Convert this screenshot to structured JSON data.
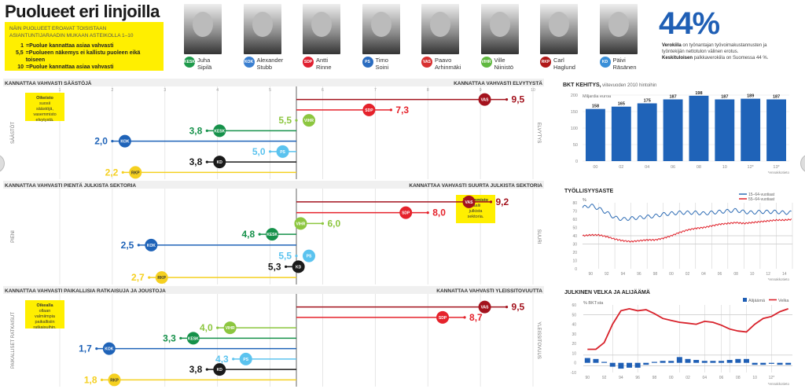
{
  "title": "Puolueet eri linjoilla",
  "legend": {
    "subtitle": "NÄIN PUOLUEET EROAVAT TOISISTAAN ASIANTUNTIJARAADIN MUKAAN ASTEIKOLLA 1–10",
    "rows": [
      {
        "key": "1",
        "text": "=Puolue kannattaa asiaa vahvasti"
      },
      {
        "key": "5,5",
        "text": "=Puolueen näkemys ei kallistu puoleen eikä toiseen"
      },
      {
        "key": "10",
        "text": "=Puolue kannattaa asiaa vahvasti"
      }
    ]
  },
  "leaders": [
    {
      "first": "Juha",
      "last": "Sipilä",
      "party": "KESK",
      "color": "#1e9a4b"
    },
    {
      "first": "Alexander",
      "last": "Stubb",
      "party": "KOK",
      "color": "#3a7fd0"
    },
    {
      "first": "Antti",
      "last": "Rinne",
      "party": "SDP",
      "color": "#e02030"
    },
    {
      "first": "Timo",
      "last": "Soini",
      "party": "PS",
      "color": "#2a6cc0"
    },
    {
      "first": "Paavo",
      "last": "Arhinmäki",
      "party": "VAS",
      "color": "#d83030"
    },
    {
      "first": "Ville",
      "last": "Niinistö",
      "party": "VIHR",
      "color": "#60b840"
    },
    {
      "first": "Carl",
      "last": "Haglund",
      "party": "RKP",
      "color": "#b01818"
    },
    {
      "first": "Päivi",
      "last": "Räsänen",
      "party": "KD",
      "color": "#3a8fd8"
    }
  ],
  "stat": {
    "value": "44%",
    "text1_bold": "Verokiila",
    "text1": " on työnantajan työvoimakustannusten ja työntekijän nettotulon välinen erotus.",
    "text2_bold": "Keskituloisen",
    "text2": " palkkaverokiila on Suomessa 44 %."
  },
  "colors": {
    "VAS": "#a3121d",
    "SDP": "#e5222b",
    "VIHR": "#8cc63f",
    "KESK": "#15914a",
    "KOK": "#1f63b8",
    "PS": "#5bc3ef",
    "KD": "#1a1a1a",
    "RKP": "#f5d020"
  },
  "chart_data": [
    {
      "type": "scatter",
      "title": "Säästöt vs elvytys",
      "left_label": "KANNATTAA VAHVASTI SÄÄSTÖJÄ",
      "right_label": "KANNATTAA VAHVASTI ELVYTYSTÄ",
      "left_axis": "SÄÄSTÖT",
      "right_axis": "ELVYTYS",
      "ticks": [
        "1",
        "2",
        "3",
        "4",
        "5",
        "6",
        "7",
        "8",
        "9",
        "10"
      ],
      "xlim": [
        1,
        10
      ],
      "note_bold": "Oikeisto",
      "note": "suosii säästöjä, vasemmisto elvytystä.",
      "note_side": "left",
      "points": [
        {
          "party": "VAS",
          "value": 9.5,
          "label": "9,5"
        },
        {
          "party": "SDP",
          "value": 7.3,
          "label": "7,3"
        },
        {
          "party": "VIHR",
          "value": 5.5,
          "label": "5,5"
        },
        {
          "party": "KESK",
          "value": 3.8,
          "label": "3,8"
        },
        {
          "party": "KOK",
          "value": 2.0,
          "label": "2,0"
        },
        {
          "party": "PS",
          "value": 5.0,
          "label": "5,0"
        },
        {
          "party": "KD",
          "value": 3.8,
          "label": "3,8"
        },
        {
          "party": "RKP",
          "value": 2.2,
          "label": "2,2"
        }
      ]
    },
    {
      "type": "scatter",
      "title": "Julkinen sektori",
      "left_label": "KANNATTAA VAHVASTI PIENTÄ JULKISTA SEKTORIA",
      "right_label": "KANNATTAA VAHVASTI SUURTA JULKISTA SEKTORIA",
      "left_axis": "PIENI",
      "right_axis": "SUURI",
      "xlim": [
        1,
        10
      ],
      "note_bold": "Vasemmisto",
      "note": "vaalii julkista sektoria.",
      "note_side": "right",
      "points": [
        {
          "party": "VAS",
          "value": 9.2,
          "label": "9,2"
        },
        {
          "party": "SDP",
          "value": 8.0,
          "label": "8,0"
        },
        {
          "party": "VIHR",
          "value": 6.0,
          "label": "6,0"
        },
        {
          "party": "KESK",
          "value": 4.8,
          "label": "4,8"
        },
        {
          "party": "KOK",
          "value": 2.5,
          "label": "2,5"
        },
        {
          "party": "PS",
          "value": 5.5,
          "label": "5,5"
        },
        {
          "party": "KD",
          "value": 5.3,
          "label": "5,3"
        },
        {
          "party": "RKP",
          "value": 2.7,
          "label": "2,7"
        }
      ]
    },
    {
      "type": "scatter",
      "title": "Paikalliset ratkaisut vs yleissitovuus",
      "left_label": "KANNATTAA VAHVASTI PAIKALLISIA RATKAISUJA JA JOUSTOJA",
      "right_label": "KANNATTAA VAHVASTI YLEISSITOVUUTTA",
      "left_axis": "PAIKALLISET RATKAISUT",
      "right_axis": "YLEISSITOVUUS",
      "xlim": [
        1,
        10
      ],
      "note_bold": "Oikealla",
      "note": "ollaan valmiimpia paikallisiin ratkaisuihin.",
      "note_side": "left",
      "points": [
        {
          "party": "VAS",
          "value": 9.5,
          "label": "9,5"
        },
        {
          "party": "SDP",
          "value": 8.7,
          "label": "8,7"
        },
        {
          "party": "VIHR",
          "value": 4.0,
          "label": "4,0"
        },
        {
          "party": "KESK",
          "value": 3.3,
          "label": "3,3"
        },
        {
          "party": "KOK",
          "value": 1.7,
          "label": "1,7"
        },
        {
          "party": "PS",
          "value": 4.3,
          "label": "4,3"
        },
        {
          "party": "KD",
          "value": 3.8,
          "label": "3,8"
        },
        {
          "party": "RKP",
          "value": 1.8,
          "label": "1,8"
        }
      ]
    },
    {
      "type": "bar",
      "title": "BKT KEHITYS,",
      "subtitle": "viitevuoden 2010 hintoihin",
      "ylabel": "Miljardia euroa",
      "categories": [
        "00",
        "02",
        "04",
        "06",
        "08",
        "10",
        "12*",
        "13*"
      ],
      "values": [
        158,
        165,
        175,
        187,
        198,
        187,
        189,
        187
      ],
      "yticks": [
        0,
        50,
        100,
        150,
        200
      ],
      "ylim": [
        0,
        200
      ],
      "footnote": "*ennakkotieto"
    },
    {
      "type": "line",
      "title": "TYÖLLISYYSASTE",
      "ylabel": "%",
      "yticks": [
        0,
        10,
        20,
        30,
        40,
        50,
        60,
        70,
        80
      ],
      "ylim": [
        0,
        80
      ],
      "xticks": [
        "90",
        "92",
        "94",
        "96",
        "98",
        "00",
        "02",
        "04",
        "06",
        "08",
        "10",
        "12",
        "14"
      ],
      "x": [
        1989,
        1990,
        1991,
        1992,
        1993,
        1994,
        1995,
        1996,
        1997,
        1998,
        1999,
        2000,
        2001,
        2002,
        2003,
        2004,
        2005,
        2006,
        2007,
        2008,
        2009,
        2010,
        2011,
        2012,
        2013,
        2014,
        2015
      ],
      "series": [
        {
          "name": "15–64-vuotiaat",
          "color": "#2f6db5",
          "values": [
            74,
            77,
            73,
            68,
            62,
            60,
            61,
            62,
            63,
            64,
            66,
            67,
            68,
            68,
            68,
            67,
            68,
            69,
            70,
            71,
            69,
            68,
            69,
            69,
            69,
            68,
            68
          ]
        },
        {
          "name": "55–64-vuotiaat",
          "color": "#e0222b",
          "values": [
            40,
            41,
            41,
            39,
            36,
            34,
            33,
            34,
            35,
            35,
            37,
            40,
            44,
            47,
            49,
            50,
            52,
            54,
            55,
            56,
            55,
            56,
            57,
            58,
            59,
            59,
            60
          ]
        }
      ],
      "footnote": "*ennakkotieto"
    },
    {
      "type": "bar",
      "title": "JULKINEN VELKA JA ALIJÄÄMÄ",
      "ylabel": "% BKT:sta",
      "yticks": [
        -10,
        0,
        10,
        20,
        30,
        40,
        50,
        60
      ],
      "ylim": [
        -10,
        60
      ],
      "xticks": [
        "90",
        "92",
        "94",
        "96",
        "98",
        "00",
        "02",
        "04",
        "06",
        "08",
        "10",
        "12*"
      ],
      "x": [
        1990,
        1991,
        1992,
        1993,
        1994,
        1995,
        1996,
        1997,
        1998,
        1999,
        2000,
        2001,
        2002,
        2003,
        2004,
        2005,
        2006,
        2007,
        2008,
        2009,
        2010,
        2011,
        2012,
        2013,
        2014
      ],
      "series": [
        {
          "name": "Alijäämä",
          "type": "bar",
          "color": "#1f5fb5",
          "values": [
            5,
            4,
            1,
            -4,
            -6,
            -5,
            -5,
            -2,
            1,
            2,
            2,
            6,
            4,
            3,
            2,
            2,
            2,
            3,
            4,
            4,
            -2,
            -2,
            -1,
            -2,
            -2
          ]
        },
        {
          "name": "Velka",
          "type": "line",
          "color": "#d8222b",
          "values": [
            14,
            14,
            21,
            40,
            54,
            56,
            54,
            55,
            51,
            46,
            44,
            42,
            41,
            40,
            43,
            42,
            39,
            35,
            33,
            32,
            40,
            46,
            48,
            53,
            56
          ]
        }
      ],
      "footnote": "*ennakkotieto"
    }
  ]
}
